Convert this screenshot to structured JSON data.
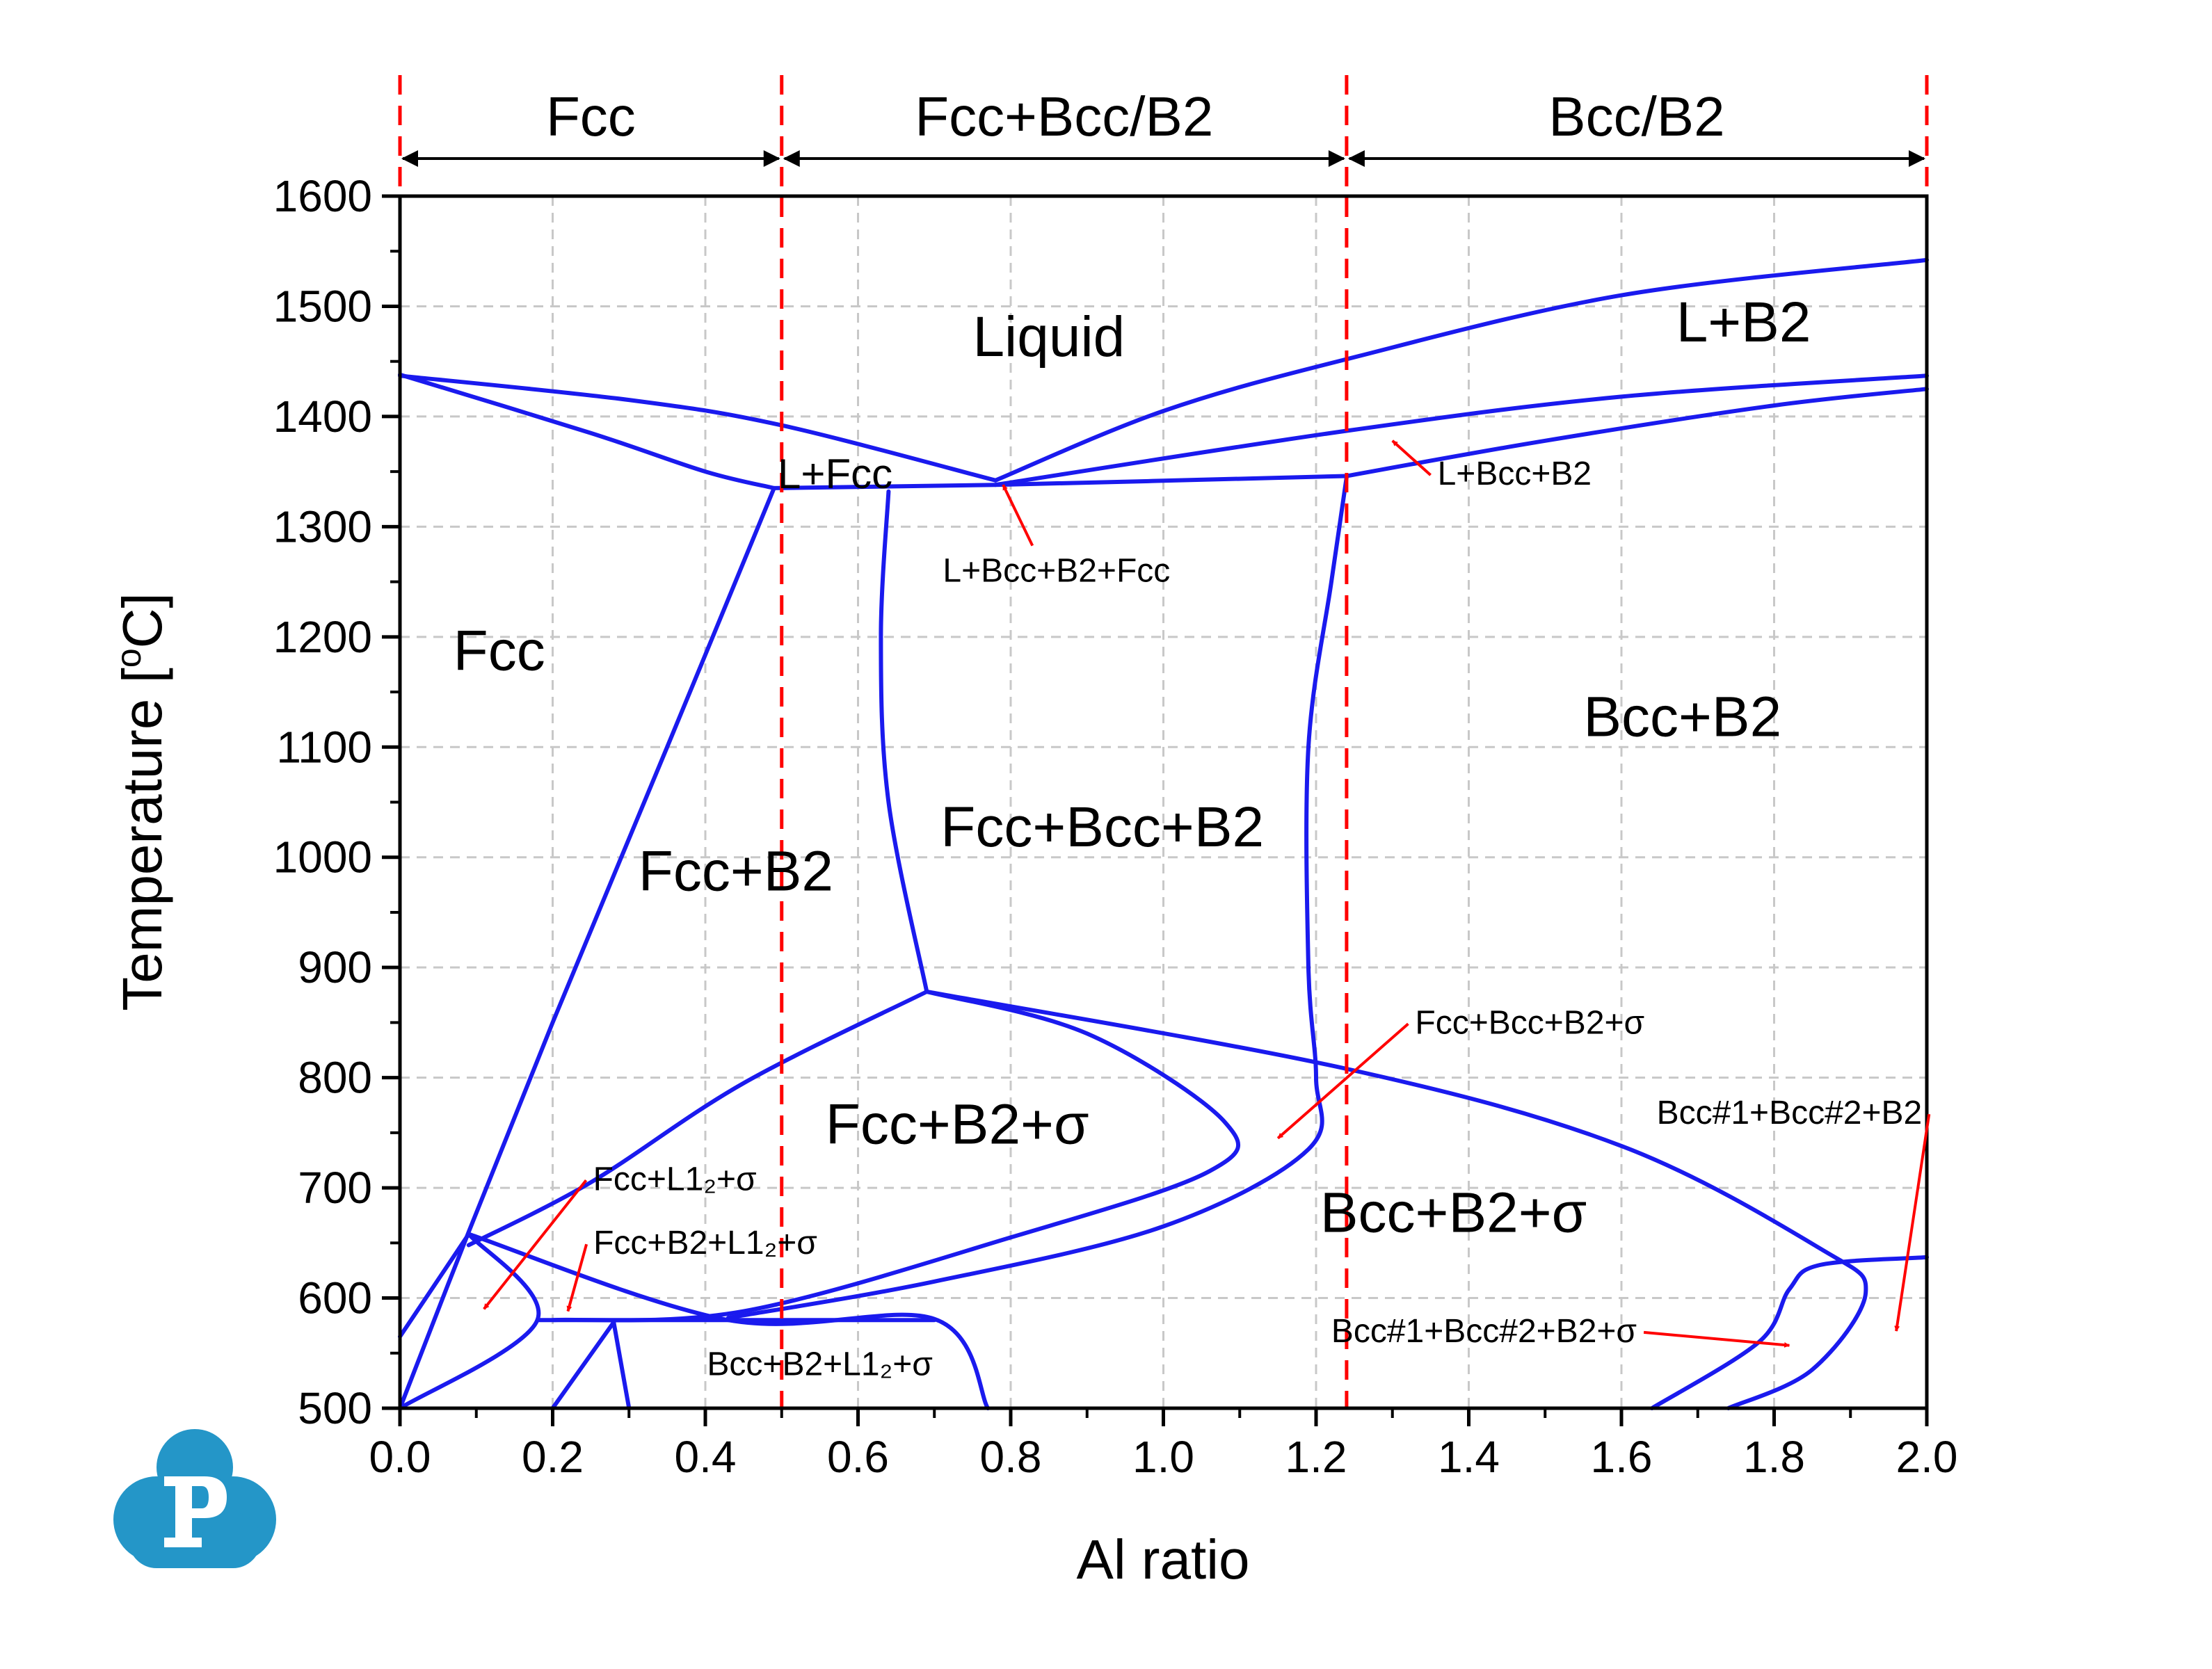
{
  "chart_data": {
    "type": "phase-diagram",
    "title": "",
    "xlabel": "Al ratio",
    "ylabel": "Temperature [°C]",
    "ylabel_parts": {
      "pre": "Temperature [",
      "sup": "o",
      "post": "C]"
    },
    "xlim": [
      0.0,
      2.0
    ],
    "ylim": [
      500,
      1600
    ],
    "x_ticks": [
      "0.0",
      "0.2",
      "0.4",
      "0.6",
      "0.8",
      "1.0",
      "1.2",
      "1.4",
      "1.6",
      "1.8",
      "2.0"
    ],
    "y_ticks": [
      "500",
      "600",
      "700",
      "800",
      "900",
      "1000",
      "1100",
      "1200",
      "1300",
      "1400",
      "1500",
      "1600"
    ],
    "grid": true,
    "line_color": "#1a1aee",
    "marker_color": "#ff0000",
    "boundaries": [
      {
        "points": [
          [
            0.0,
            1438
          ],
          [
            0.25,
            1385
          ],
          [
            0.4,
            1350
          ],
          [
            0.49,
            1335
          ]
        ]
      },
      {
        "points": [
          [
            0.0,
            1437
          ],
          [
            0.3,
            1415
          ],
          [
            0.5,
            1392
          ],
          [
            0.78,
            1342
          ]
        ]
      },
      {
        "points": [
          [
            0.49,
            1335
          ],
          [
            0.78,
            1338
          ],
          [
            1.24,
            1346
          ]
        ]
      },
      {
        "points": [
          [
            0.78,
            1342
          ],
          [
            1.0,
            1405
          ],
          [
            1.24,
            1452
          ],
          [
            1.6,
            1510
          ],
          [
            2.0,
            1542
          ]
        ]
      },
      {
        "points": [
          [
            0.78,
            1338
          ],
          [
            1.24,
            1387
          ],
          [
            1.6,
            1418
          ],
          [
            2.0,
            1437
          ]
        ]
      },
      {
        "points": [
          [
            1.24,
            1346
          ],
          [
            1.5,
            1378
          ],
          [
            1.8,
            1410
          ],
          [
            2.0,
            1425
          ]
        ]
      },
      {
        "points": [
          [
            0.49,
            1335
          ],
          [
            0.35,
            1100
          ],
          [
            0.2,
            850
          ],
          [
            0.09,
            660
          ],
          [
            0.0,
            500
          ]
        ]
      },
      {
        "points": [
          [
            0.64,
            1332
          ],
          [
            0.63,
            1200
          ],
          [
            0.64,
            1050
          ],
          [
            0.69,
            878
          ]
        ]
      },
      {
        "points": [
          [
            1.24,
            1345
          ],
          [
            1.22,
            1250
          ],
          [
            1.19,
            1100
          ],
          [
            1.19,
            900
          ],
          [
            1.2,
            800
          ],
          [
            1.19,
            735
          ],
          [
            1.0,
            665
          ],
          [
            0.7,
            615
          ],
          [
            0.43,
            582
          ]
        ]
      },
      {
        "points": [
          [
            0.69,
            878
          ],
          [
            0.9,
            840
          ],
          [
            1.08,
            760
          ],
          [
            1.06,
            715
          ],
          [
            0.8,
            655
          ],
          [
            0.45,
            588
          ],
          [
            0.2,
            580
          ]
        ]
      },
      {
        "points": [
          [
            0.69,
            878
          ],
          [
            0.45,
            795
          ],
          [
            0.25,
            705
          ],
          [
            0.09,
            648
          ]
        ]
      },
      {
        "points": [
          [
            0.69,
            878
          ],
          [
            1.24,
            808
          ],
          [
            1.6,
            738
          ],
          [
            1.86,
            645
          ],
          [
            1.92,
            605
          ],
          [
            1.85,
            535
          ],
          [
            1.74,
            500
          ]
        ]
      },
      {
        "points": [
          [
            0.09,
            658
          ],
          [
            0.43,
            580
          ],
          [
            0.7,
            581
          ],
          [
            0.77,
            500
          ]
        ]
      },
      {
        "points": [
          [
            0.18,
            580
          ],
          [
            0.7,
            580
          ]
        ]
      },
      {
        "points": [
          [
            0.09,
            658
          ],
          [
            0.18,
            580
          ],
          [
            0.0,
            500
          ]
        ]
      },
      {
        "points": [
          [
            0.0,
            565
          ],
          [
            0.09,
            658
          ]
        ]
      },
      {
        "points": [
          [
            0.28,
            578
          ],
          [
            0.3,
            500
          ]
        ]
      },
      {
        "points": [
          [
            0.28,
            578
          ],
          [
            0.2,
            500
          ]
        ]
      },
      {
        "points": [
          [
            2.0,
            637
          ],
          [
            1.86,
            630
          ],
          [
            1.82,
            608
          ],
          [
            1.78,
            560
          ],
          [
            1.64,
            500
          ]
        ]
      }
    ],
    "dividers_x": [
      0.0,
      0.5,
      1.24,
      2.0
    ],
    "top_regions": [
      {
        "label": "Fcc",
        "from": 0.0,
        "to": 0.5
      },
      {
        "label": "Fcc+Bcc/B2",
        "from": 0.5,
        "to": 1.24
      },
      {
        "label": "Bcc/B2",
        "from": 1.24,
        "to": 2.0
      }
    ],
    "region_labels": [
      {
        "text": "Liquid",
        "x": 0.85,
        "y": 1455,
        "size": "large"
      },
      {
        "text": "L+B2",
        "x": 1.76,
        "y": 1468,
        "size": "large"
      },
      {
        "text": "L+Fcc",
        "x": 0.57,
        "y": 1335,
        "size": "medium"
      },
      {
        "text": "Fcc",
        "x": 0.13,
        "y": 1170,
        "size": "large"
      },
      {
        "text": "Fcc+B2",
        "x": 0.44,
        "y": 970,
        "size": "large"
      },
      {
        "text": "Fcc+Bcc+B2",
        "x": 0.92,
        "y": 1010,
        "size": "large"
      },
      {
        "text": "Bcc+B2",
        "x": 1.68,
        "y": 1110,
        "size": "large"
      },
      {
        "text": "Bcc+B2+σ",
        "x": 1.38,
        "y": 660,
        "size": "large"
      },
      {
        "text": "Fcc+B2+σ",
        "x": 0.73,
        "y": 740,
        "size": "large"
      }
    ],
    "annotations": [
      {
        "text": "L+Bcc+B2",
        "label_x": 1.46,
        "label_y": 1338,
        "tip_x": 1.3,
        "tip_y": 1378
      },
      {
        "text": "L+Bcc+B2+Fcc",
        "label_x": 0.86,
        "label_y": 1250,
        "tip_x": 0.79,
        "tip_y": 1338
      },
      {
        "text": "Fcc+Bcc+B2+σ",
        "label_x": 1.48,
        "label_y": 840,
        "tip_x": 1.15,
        "tip_y": 745
      },
      {
        "text": "Bcc#1+Bcc#2+B2",
        "label_x": 1.82,
        "label_y": 758,
        "tip_x": 1.96,
        "tip_y": 570
      },
      {
        "text": "Bcc#1+Bcc#2+B2+σ",
        "label_x": 1.42,
        "label_y": 560,
        "tip_x": 1.82,
        "tip_y": 557
      },
      {
        "text": "Fcc+L1₂+σ",
        "label_x": 0.36,
        "label_y": 698,
        "tip_x": 0.11,
        "tip_y": 590
      },
      {
        "text": "Fcc+B2+L1₂+σ",
        "label_x": 0.4,
        "label_y": 640,
        "tip_x": 0.22,
        "tip_y": 588
      },
      {
        "text": "Bcc+B2+L1₂+σ",
        "label_x": 0.55,
        "label_y": 530,
        "tip_x": null,
        "tip_y": null
      }
    ]
  }
}
